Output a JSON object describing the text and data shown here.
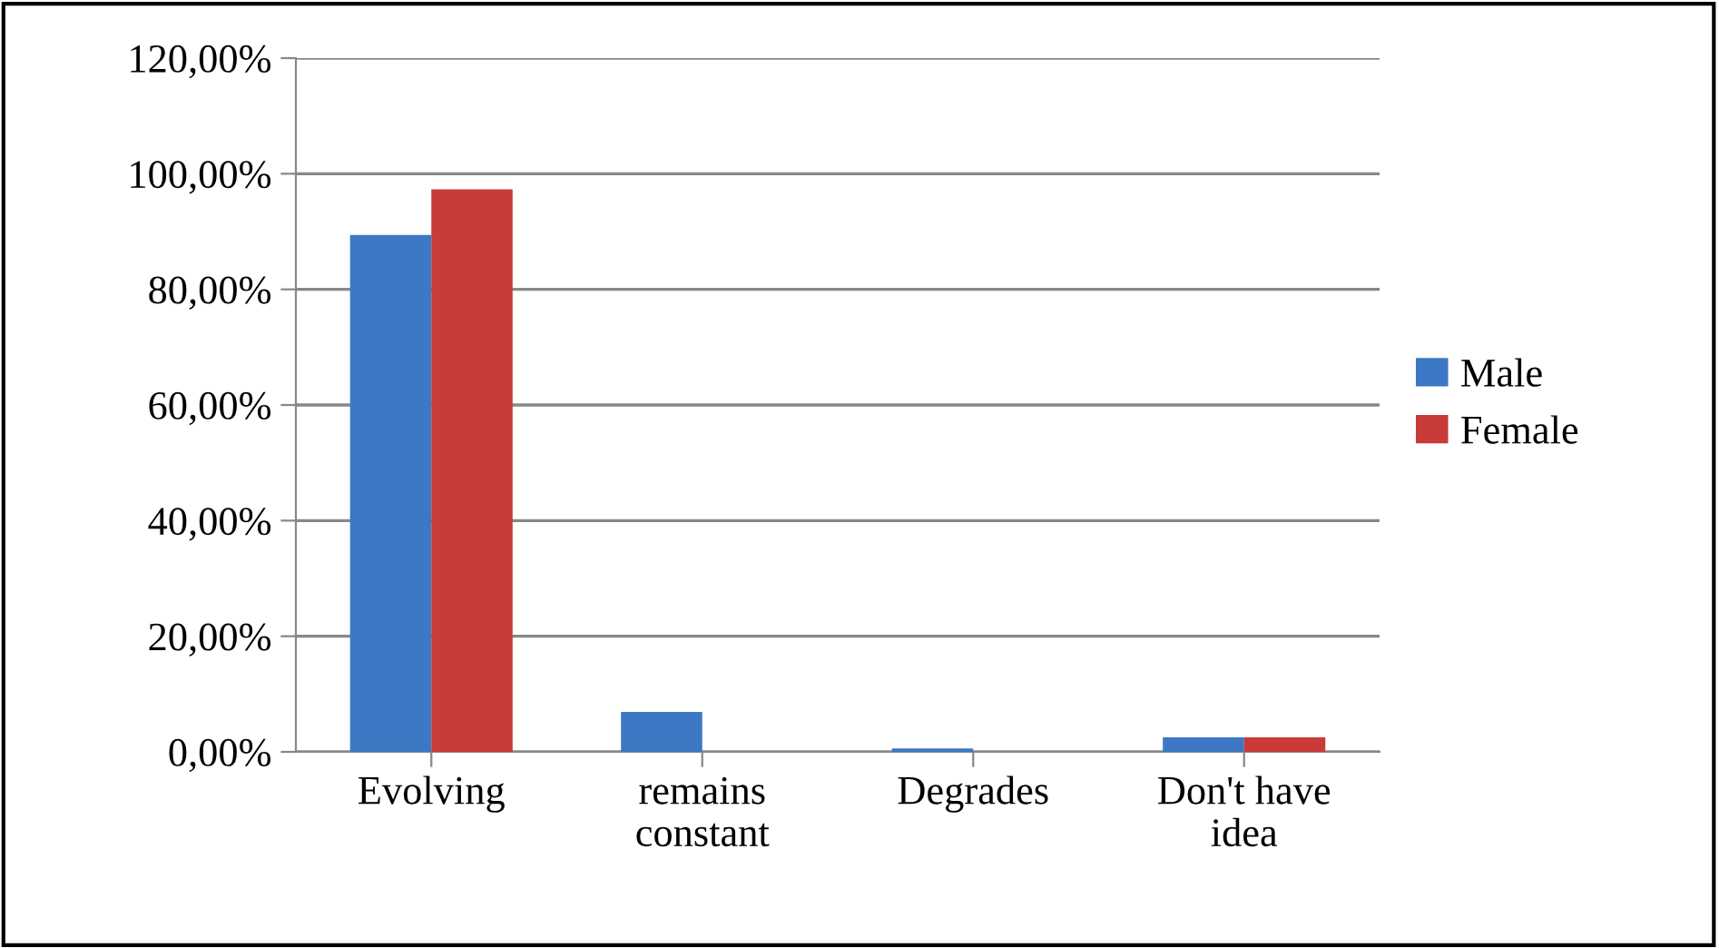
{
  "chart_data": {
    "type": "bar",
    "categories": [
      "Evolving",
      "remains\nconstant",
      "Degrades",
      "Don't have\nidea"
    ],
    "series": [
      {
        "name": "Male",
        "color": "#3d78c4",
        "values": [
          89.4,
          6.9,
          0.6,
          2.5
        ]
      },
      {
        "name": "Female",
        "color": "#c83b38",
        "values": [
          97.3,
          0,
          0,
          2.5
        ]
      }
    ],
    "ylim": [
      0,
      120
    ],
    "yticks": [
      {
        "value": 0,
        "label": "0,00%"
      },
      {
        "value": 20,
        "label": "20,00%"
      },
      {
        "value": 40,
        "label": "40,00%"
      },
      {
        "value": 60,
        "label": "60,00%"
      },
      {
        "value": 80,
        "label": "80,00%"
      },
      {
        "value": 100,
        "label": "100,00%"
      },
      {
        "value": 120,
        "label": "120,00%"
      }
    ],
    "grid": "y",
    "legend": "right"
  }
}
